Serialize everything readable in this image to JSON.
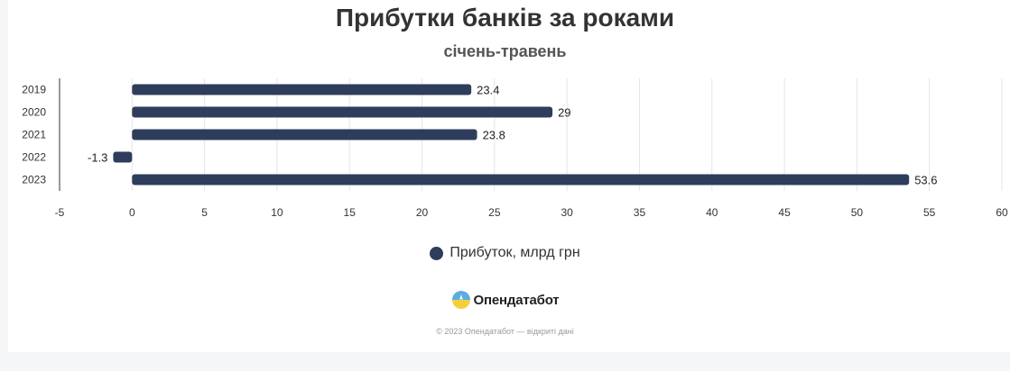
{
  "chart_data": {
    "type": "bar",
    "orientation": "horizontal",
    "title": "Прибутки банків за роками",
    "subtitle": "січень-травень",
    "categories": [
      "2019",
      "2020",
      "2021",
      "2022",
      "2023"
    ],
    "series": [
      {
        "name": "Прибуток, млрд грн",
        "values": [
          23.4,
          29,
          23.8,
          -1.3,
          53.6
        ],
        "color": "#2e3d5c"
      }
    ],
    "xlim": [
      -5,
      60
    ],
    "x_ticks": [
      "-5",
      "0",
      "5",
      "10",
      "15",
      "20",
      "25",
      "30",
      "35",
      "40",
      "45",
      "50",
      "55",
      "60"
    ],
    "data_labels": [
      "23.4",
      "29",
      "23.8",
      "-1.3",
      "53.6"
    ],
    "grid": true,
    "legend_position": "bottom"
  },
  "brand": {
    "name": "Опендатабот"
  },
  "footer": {
    "text": "© 2023 Опендатабот — відкриті дані"
  }
}
